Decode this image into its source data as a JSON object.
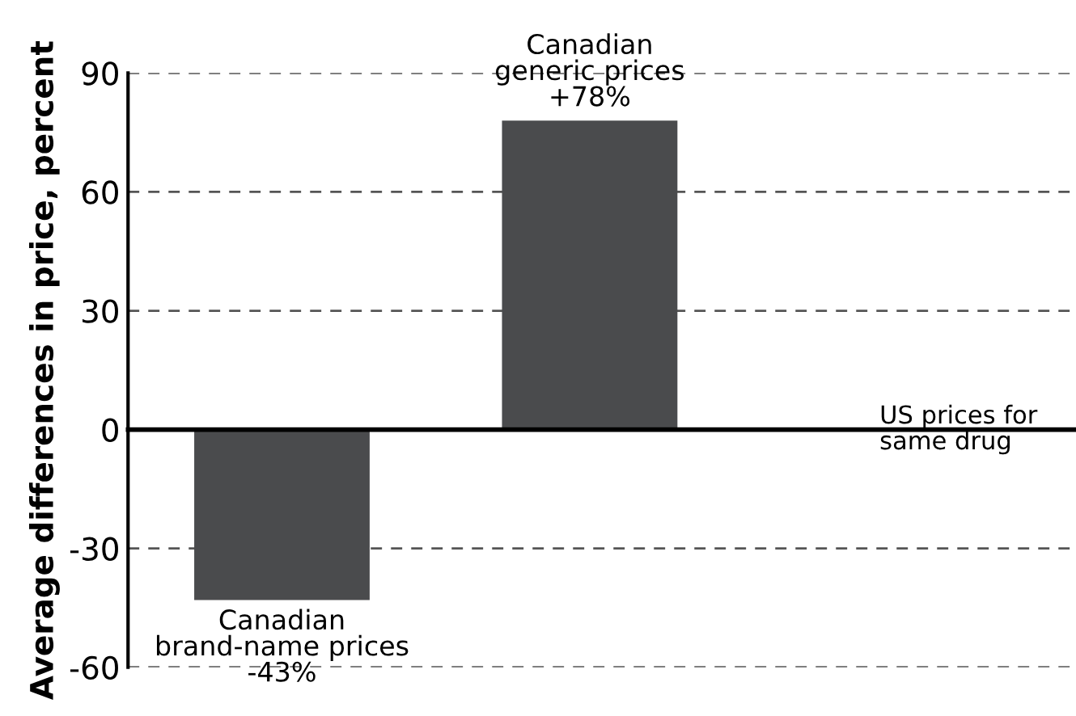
{
  "chart_data": {
    "type": "bar",
    "ylabel": "Average differences in price, percent",
    "categories": [
      "Canadian\nbrand-name prices",
      "Canadian\ngeneric prices",
      "US prices for\nsame drug"
    ],
    "values": [
      -43,
      78,
      0
    ],
    "value_labels": [
      "-43%",
      "+78%",
      null
    ],
    "color": "#4a4b4d",
    "ylim": [
      -60,
      90
    ],
    "yticks": [
      -60,
      -30,
      0,
      30,
      60,
      90
    ],
    "grid": "y"
  }
}
